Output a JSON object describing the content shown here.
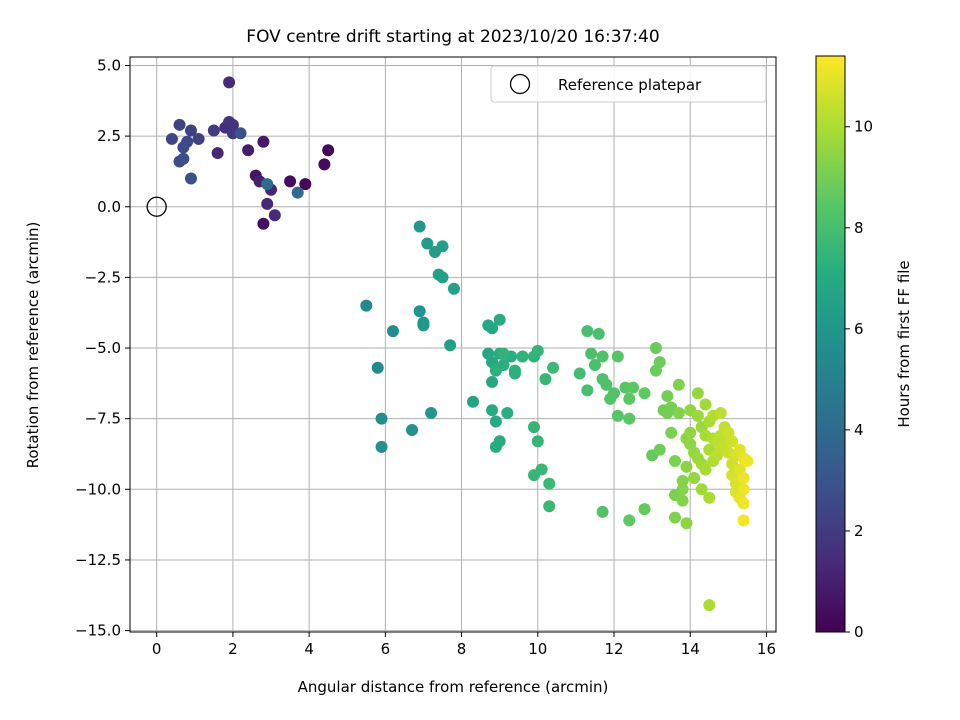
{
  "chart_data": {
    "type": "scatter",
    "title": "FOV centre drift starting at 2023/10/20 16:37:40",
    "xlabel": "Angular distance from reference (arcmin)",
    "ylabel": "Rotation from reference (arcmin)",
    "xlim": [
      -0.7,
      16.25
    ],
    "ylim": [
      -15.05,
      5.3
    ],
    "xticks": [
      0,
      2,
      4,
      6,
      8,
      10,
      12,
      14,
      16
    ],
    "xtick_labels": [
      "0",
      "2",
      "4",
      "6",
      "8",
      "10",
      "12",
      "14",
      "16"
    ],
    "yticks": [
      5.0,
      2.5,
      0.0,
      -2.5,
      -5.0,
      -7.5,
      -10.0,
      -12.5,
      -15.0
    ],
    "ytick_labels": [
      "5.0",
      "2.5",
      "0.0",
      "−2.5",
      "−5.0",
      "−7.5",
      "−10.0",
      "−12.5",
      "−15.0"
    ],
    "grid": true,
    "legend": {
      "placement": "top-right",
      "entries": [
        "Reference platepar"
      ]
    },
    "reference_point": {
      "x": 0,
      "y": 0
    },
    "colorbar": {
      "label": "Hours from first FF file",
      "colormap": "viridis",
      "range": [
        0,
        11.4
      ],
      "ticks": [
        0,
        2,
        4,
        6,
        8,
        10
      ],
      "tick_labels": [
        "0",
        "2",
        "4",
        "6",
        "8",
        "10"
      ]
    },
    "points": [
      [
        4.5,
        2.0,
        0.2
      ],
      [
        3.9,
        0.8,
        0.2
      ],
      [
        4.4,
        1.5,
        0.3
      ],
      [
        3.5,
        0.9,
        0.4
      ],
      [
        2.8,
        -0.6,
        0.5
      ],
      [
        2.6,
        1.1,
        0.6
      ],
      [
        2.8,
        2.3,
        0.8
      ],
      [
        2.4,
        2.0,
        0.9
      ],
      [
        2.7,
        0.9,
        1.0
      ],
      [
        3.0,
        0.6,
        1.2
      ],
      [
        2.9,
        0.1,
        1.3
      ],
      [
        3.1,
        -0.3,
        1.4
      ],
      [
        1.6,
        1.9,
        1.3
      ],
      [
        1.9,
        4.4,
        1.4
      ],
      [
        1.8,
        2.8,
        1.5
      ],
      [
        2.0,
        2.9,
        1.6
      ],
      [
        1.9,
        3.0,
        1.7
      ],
      [
        2.0,
        2.6,
        1.8
      ],
      [
        1.5,
        2.7,
        2.0
      ],
      [
        1.1,
        2.4,
        2.2
      ],
      [
        0.9,
        2.7,
        2.2
      ],
      [
        0.6,
        2.9,
        2.3
      ],
      [
        0.4,
        2.4,
        2.4
      ],
      [
        0.8,
        2.3,
        2.5
      ],
      [
        0.7,
        2.1,
        2.6
      ],
      [
        0.6,
        1.6,
        2.6
      ],
      [
        0.7,
        1.7,
        2.7
      ],
      [
        0.9,
        1.0,
        2.8
      ],
      [
        2.2,
        2.6,
        2.9
      ],
      [
        3.7,
        0.5,
        3.9
      ],
      [
        2.9,
        0.8,
        4.0
      ],
      [
        5.5,
        -3.5,
        5.3
      ],
      [
        5.8,
        -5.7,
        5.4
      ],
      [
        5.9,
        -7.5,
        5.5
      ],
      [
        5.9,
        -8.5,
        5.6
      ],
      [
        6.2,
        -4.4,
        5.6
      ],
      [
        6.7,
        -7.9,
        5.8
      ],
      [
        6.9,
        -3.7,
        5.9
      ],
      [
        7.0,
        -4.1,
        6.0
      ],
      [
        7.0,
        -4.2,
        6.0
      ],
      [
        7.2,
        -7.3,
        6.1
      ],
      [
        6.9,
        -0.7,
        6.2
      ],
      [
        7.1,
        -1.3,
        6.3
      ],
      [
        7.3,
        -1.6,
        6.4
      ],
      [
        7.5,
        -1.4,
        6.4
      ],
      [
        7.4,
        -2.4,
        6.5
      ],
      [
        7.5,
        -2.5,
        6.5
      ],
      [
        7.7,
        -4.9,
        6.5
      ],
      [
        7.8,
        -2.9,
        6.6
      ],
      [
        8.3,
        -6.9,
        6.7
      ],
      [
        8.7,
        -4.2,
        6.8
      ],
      [
        8.7,
        -5.2,
        6.8
      ],
      [
        8.8,
        -4.3,
        6.9
      ],
      [
        8.8,
        -5.5,
        6.9
      ],
      [
        8.8,
        -6.2,
        6.9
      ],
      [
        8.8,
        -7.2,
        7.0
      ],
      [
        8.9,
        -7.6,
        7.0
      ],
      [
        8.9,
        -8.5,
        7.0
      ],
      [
        9.0,
        -8.3,
        7.1
      ],
      [
        9.0,
        -4.0,
        7.1
      ],
      [
        9.0,
        -5.2,
        7.1
      ],
      [
        9.1,
        -5.6,
        7.2
      ],
      [
        9.2,
        -7.3,
        7.2
      ],
      [
        9.3,
        -5.3,
        7.2
      ],
      [
        9.4,
        -5.8,
        7.3
      ],
      [
        9.4,
        -5.9,
        7.3
      ],
      [
        8.9,
        -5.8,
        7.3
      ],
      [
        9.1,
        -5.2,
        7.4
      ],
      [
        9.6,
        -5.3,
        7.4
      ],
      [
        9.9,
        -5.3,
        7.4
      ],
      [
        9.9,
        -7.8,
        7.5
      ],
      [
        10.0,
        -8.3,
        7.5
      ],
      [
        10.0,
        -5.1,
        7.5
      ],
      [
        9.9,
        -9.5,
        7.6
      ],
      [
        10.1,
        -9.3,
        7.6
      ],
      [
        10.2,
        -6.1,
        7.6
      ],
      [
        10.3,
        -9.8,
        7.7
      ],
      [
        10.4,
        -5.7,
        7.7
      ],
      [
        10.3,
        -10.6,
        7.7
      ],
      [
        11.1,
        -5.9,
        7.9
      ],
      [
        11.3,
        -6.5,
        8.0
      ],
      [
        11.3,
        -4.4,
        8.0
      ],
      [
        11.4,
        -5.2,
        8.1
      ],
      [
        11.5,
        -5.6,
        8.1
      ],
      [
        11.6,
        -4.5,
        8.1
      ],
      [
        11.7,
        -5.3,
        8.2
      ],
      [
        11.7,
        -6.1,
        8.2
      ],
      [
        11.8,
        -6.3,
        8.2
      ],
      [
        11.9,
        -6.8,
        8.3
      ],
      [
        12.0,
        -6.6,
        8.3
      ],
      [
        11.7,
        -10.8,
        8.3
      ],
      [
        12.1,
        -5.3,
        8.4
      ],
      [
        12.1,
        -7.4,
        8.4
      ],
      [
        12.3,
        -6.4,
        8.4
      ],
      [
        12.4,
        -6.8,
        8.5
      ],
      [
        12.4,
        -7.5,
        8.5
      ],
      [
        12.5,
        -6.4,
        8.5
      ],
      [
        12.4,
        -11.1,
        8.6
      ],
      [
        12.8,
        -6.6,
        8.6
      ],
      [
        12.8,
        -10.7,
        8.7
      ],
      [
        13.0,
        -8.8,
        8.7
      ],
      [
        13.1,
        -5.0,
        8.8
      ],
      [
        13.1,
        -5.8,
        8.8
      ],
      [
        13.2,
        -5.5,
        8.8
      ],
      [
        13.2,
        -8.6,
        8.9
      ],
      [
        13.3,
        -7.2,
        8.9
      ],
      [
        13.4,
        -6.7,
        9.0
      ],
      [
        13.4,
        -7.3,
        9.0
      ],
      [
        13.5,
        -7.1,
        9.0
      ],
      [
        13.5,
        -8.0,
        9.1
      ],
      [
        13.6,
        -9.0,
        9.1
      ],
      [
        13.6,
        -10.2,
        9.1
      ],
      [
        13.6,
        -11.0,
        9.2
      ],
      [
        13.7,
        -6.3,
        9.2
      ],
      [
        13.7,
        -7.3,
        9.2
      ],
      [
        13.8,
        -9.7,
        9.3
      ],
      [
        13.8,
        -10.4,
        9.3
      ],
      [
        13.8,
        -10.0,
        9.3
      ],
      [
        13.9,
        -8.2,
        9.4
      ],
      [
        13.9,
        -9.2,
        9.4
      ],
      [
        13.9,
        -11.2,
        9.4
      ],
      [
        14.0,
        -7.2,
        9.5
      ],
      [
        14.0,
        -8.4,
        9.5
      ],
      [
        14.0,
        -8.0,
        9.5
      ],
      [
        14.1,
        -8.7,
        9.6
      ],
      [
        14.1,
        -9.6,
        9.6
      ],
      [
        14.2,
        -6.6,
        9.6
      ],
      [
        14.2,
        -7.4,
        9.7
      ],
      [
        14.2,
        -8.9,
        9.7
      ],
      [
        14.3,
        -7.8,
        9.7
      ],
      [
        14.3,
        -9.1,
        9.8
      ],
      [
        14.3,
        -10.0,
        9.8
      ],
      [
        14.4,
        -7.0,
        9.8
      ],
      [
        14.4,
        -8.1,
        9.9
      ],
      [
        14.4,
        -9.3,
        9.9
      ],
      [
        14.5,
        -7.6,
        9.9
      ],
      [
        14.5,
        -8.6,
        10.0
      ],
      [
        14.5,
        -10.3,
        10.0
      ],
      [
        14.5,
        -14.1,
        10.0
      ],
      [
        14.6,
        -7.4,
        10.1
      ],
      [
        14.6,
        -8.2,
        10.1
      ],
      [
        14.6,
        -9.0,
        10.1
      ],
      [
        14.7,
        -8.3,
        10.2
      ],
      [
        14.7,
        -8.8,
        10.2
      ],
      [
        14.8,
        -7.3,
        10.3
      ],
      [
        14.8,
        -8.1,
        10.3
      ],
      [
        14.8,
        -8.6,
        10.3
      ],
      [
        14.9,
        -7.8,
        10.4
      ],
      [
        14.9,
        -8.4,
        10.4
      ],
      [
        15.0,
        -8.0,
        10.5
      ],
      [
        15.0,
        -8.7,
        10.5
      ],
      [
        15.1,
        -8.3,
        10.6
      ],
      [
        15.1,
        -9.1,
        10.6
      ],
      [
        15.2,
        -8.8,
        10.7
      ],
      [
        15.1,
        -9.5,
        10.7
      ],
      [
        15.2,
        -9.8,
        10.8
      ],
      [
        15.2,
        -10.1,
        10.8
      ],
      [
        15.3,
        -8.6,
        10.9
      ],
      [
        15.3,
        -9.3,
        10.9
      ],
      [
        15.3,
        -10.3,
        11.0
      ],
      [
        15.4,
        -8.9,
        11.0
      ],
      [
        15.4,
        -9.6,
        11.1
      ],
      [
        15.4,
        -10.0,
        11.1
      ],
      [
        15.4,
        -10.5,
        11.2
      ],
      [
        15.4,
        -11.1,
        11.3
      ],
      [
        15.5,
        -9.0,
        11.2
      ]
    ]
  }
}
